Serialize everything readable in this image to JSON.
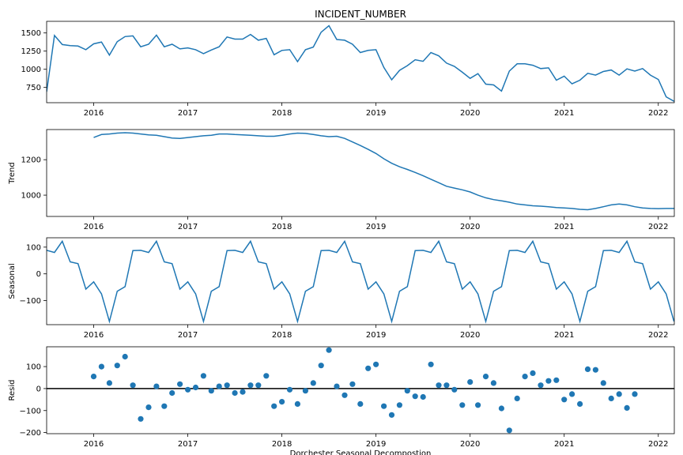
{
  "colors": {
    "line": "#1f77b4",
    "marker": "#1f77b4",
    "axis": "#000000",
    "zero_line": "#000000"
  },
  "chart_data": [
    {
      "type": "line",
      "title": "INCIDENT_NUMBER",
      "ylabel": "",
      "xlim": [
        2015.5,
        2022.17
      ],
      "ylim": [
        540,
        1660
      ],
      "xticks": [
        2016,
        2017,
        2018,
        2019,
        2020,
        2021,
        2022
      ],
      "yticks": [
        750,
        1000,
        1250,
        1500
      ],
      "series": [
        {
          "x": [],
          "values": []
        }
      ]
    },
    {
      "type": "line",
      "ylabel": "Trend",
      "xlim": [
        2015.5,
        2022.17
      ],
      "ylim": [
        880,
        1370
      ],
      "xticks": [
        2016,
        2017,
        2018,
        2019,
        2020,
        2021,
        2022
      ],
      "yticks": [
        1000,
        1200
      ],
      "series": [
        {
          "x": [],
          "values": []
        }
      ]
    },
    {
      "type": "line",
      "ylabel": "Seasonal",
      "xlim": [
        2015.5,
        2022.17
      ],
      "ylim": [
        -190,
        135
      ],
      "xticks": [
        2016,
        2017,
        2018,
        2019,
        2020,
        2021,
        2022
      ],
      "yticks": [
        -100,
        0,
        100
      ],
      "series": [
        {
          "x": [],
          "values": []
        }
      ]
    },
    {
      "type": "scatter",
      "ylabel": "Resid",
      "xlabel": "Dorchester Seasonal Decompostion",
      "xlim": [
        2015.5,
        2022.17
      ],
      "ylim": [
        -205,
        190
      ],
      "xticks": [
        2016,
        2017,
        2018,
        2019,
        2020,
        2021,
        2022
      ],
      "yticks": [
        -200,
        -100,
        0,
        100
      ],
      "zero_line": 0,
      "series": [
        {
          "x": [],
          "values": []
        }
      ]
    }
  ]
}
